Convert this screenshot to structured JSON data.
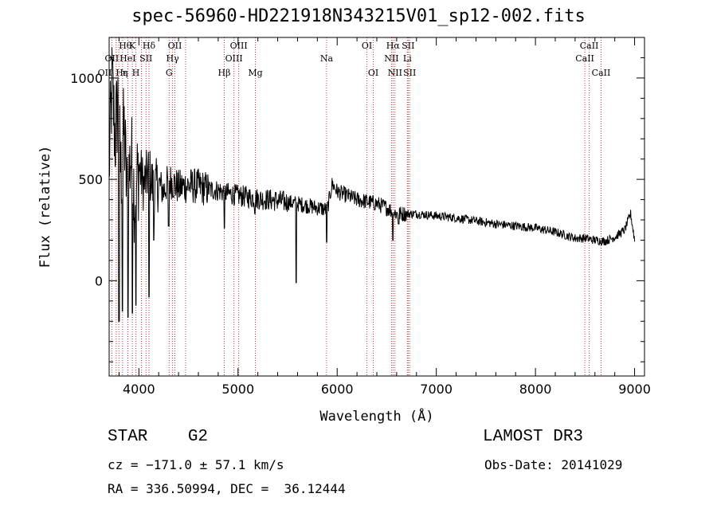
{
  "title": "spec-56960-HD221918N343215V01_sp12-002.fits",
  "info": {
    "star_class": "STAR    G2",
    "survey": "LAMOST DR3",
    "cz": "cz = −171.0 ± 57.1 km/s",
    "obs_date": "Obs-Date: 20141029",
    "radec": "RA = 336.50994, DEC =  36.12444"
  },
  "chart_data": {
    "type": "line",
    "title": "spec-56960-HD221918N343215V01_sp12-002.fits",
    "xlabel": "Wavelength (Å)",
    "ylabel": "Flux (relative)",
    "xlim": [
      3700,
      9100
    ],
    "ylim": [
      -470,
      1200
    ],
    "x_ticks": [
      4000,
      5000,
      6000,
      7000,
      8000,
      9000
    ],
    "y_ticks": [
      0,
      500,
      1000
    ],
    "line_color": "#000000",
    "marker_color": "#c83232",
    "spectrum_anchors": [
      [
        3700,
        560
      ],
      [
        3730,
        980
      ],
      [
        3760,
        700
      ],
      [
        3790,
        900
      ],
      [
        3820,
        520
      ],
      [
        3850,
        750
      ],
      [
        3880,
        430
      ],
      [
        3920,
        620
      ],
      [
        3960,
        400
      ],
      [
        4000,
        560
      ],
      [
        4050,
        470
      ],
      [
        4100,
        540
      ],
      [
        4150,
        450
      ],
      [
        4200,
        480
      ],
      [
        4250,
        440
      ],
      [
        4300,
        500
      ],
      [
        4400,
        460
      ],
      [
        4500,
        470
      ],
      [
        4600,
        465
      ],
      [
        4700,
        450
      ],
      [
        4800,
        445
      ],
      [
        4900,
        430
      ],
      [
        5000,
        420
      ],
      [
        5200,
        405
      ],
      [
        5400,
        395
      ],
      [
        5600,
        380
      ],
      [
        5800,
        360
      ],
      [
        5900,
        350
      ],
      [
        5950,
        480
      ],
      [
        6000,
        440
      ],
      [
        6100,
        420
      ],
      [
        6200,
        400
      ],
      [
        6300,
        390
      ],
      [
        6400,
        380
      ],
      [
        6500,
        360
      ],
      [
        6600,
        330
      ],
      [
        6700,
        330
      ],
      [
        6800,
        330
      ],
      [
        7000,
        320
      ],
      [
        7200,
        310
      ],
      [
        7400,
        295
      ],
      [
        7600,
        280
      ],
      [
        7800,
        270
      ],
      [
        8000,
        260
      ],
      [
        8200,
        240
      ],
      [
        8400,
        210
      ],
      [
        8500,
        210
      ],
      [
        8600,
        200
      ],
      [
        8700,
        195
      ],
      [
        8800,
        215
      ],
      [
        8900,
        250
      ],
      [
        8960,
        330
      ],
      [
        9000,
        200
      ]
    ],
    "spectrum_dips": [
      [
        3800,
        -200
      ],
      [
        3835,
        -150
      ],
      [
        3890,
        -180
      ],
      [
        3934,
        -160
      ],
      [
        3969,
        -120
      ],
      [
        4102,
        -80
      ],
      [
        4150,
        200
      ],
      [
        4300,
        270
      ],
      [
        4861,
        260
      ],
      [
        5170,
        330
      ],
      [
        5585,
        -10
      ],
      [
        5893,
        190
      ],
      [
        6563,
        200
      ],
      [
        6620,
        280
      ]
    ],
    "lines": [
      {
        "label": "Hθ",
        "wl": 3798,
        "row": 0,
        "align": "start"
      },
      {
        "label": "K",
        "wl": 3934,
        "row": 0,
        "align": "middle"
      },
      {
        "label": "Hδ",
        "wl": 4102,
        "row": 0,
        "align": "middle"
      },
      {
        "label": "OII",
        "wl": 4363,
        "row": 0,
        "align": "middle"
      },
      {
        "label": "OIII",
        "wl": 5007,
        "row": 0,
        "align": "middle"
      },
      {
        "label": "OI",
        "wl": 6300,
        "row": 0,
        "align": "middle"
      },
      {
        "label": "Hα",
        "wl": 6563,
        "row": 0,
        "align": "middle"
      },
      {
        "label": "SII",
        "wl": 6716,
        "row": 0,
        "align": "middle"
      },
      {
        "label": "CaII",
        "wl": 8542,
        "row": 0,
        "align": "middle"
      },
      {
        "label": "OII",
        "wl": 3727,
        "row": 1,
        "align": "middle"
      },
      {
        "label": "HeI",
        "wl": 3888,
        "row": 1,
        "align": "middle"
      },
      {
        "label": "SII",
        "wl": 4072,
        "row": 1,
        "align": "middle"
      },
      {
        "label": "Hγ",
        "wl": 4340,
        "row": 1,
        "align": "middle"
      },
      {
        "label": "OIII",
        "wl": 4959,
        "row": 1,
        "align": "middle"
      },
      {
        "label": "Na",
        "wl": 5893,
        "row": 1,
        "align": "middle"
      },
      {
        "label": "NII",
        "wl": 6548,
        "row": 1,
        "align": "middle"
      },
      {
        "label": "Li",
        "wl": 6708,
        "row": 1,
        "align": "middle"
      },
      {
        "label": "CaII",
        "wl": 8498,
        "row": 1,
        "align": "middle"
      },
      {
        "label": "OII",
        "wl": 3727,
        "row": 2,
        "align": "end"
      },
      {
        "label": "Hε",
        "wl": 3889,
        "row": 2,
        "align": "end"
      },
      {
        "label": "η",
        "wl": 3835,
        "row": 2,
        "align": "start"
      },
      {
        "label": "H",
        "wl": 3970,
        "row": 2,
        "align": "middle"
      },
      {
        "label": "G",
        "wl": 4305,
        "row": 2,
        "align": "middle"
      },
      {
        "label": "Hβ",
        "wl": 4861,
        "row": 2,
        "align": "middle"
      },
      {
        "label": "Mg",
        "wl": 5175,
        "row": 2,
        "align": "middle"
      },
      {
        "label": "OI",
        "wl": 6364,
        "row": 2,
        "align": "middle"
      },
      {
        "label": "NII",
        "wl": 6583,
        "row": 2,
        "align": "middle"
      },
      {
        "label": "SII",
        "wl": 6731,
        "row": 2,
        "align": "middle"
      },
      {
        "label": "CaII",
        "wl": 8662,
        "row": 2,
        "align": "middle"
      }
    ],
    "extra_markers": [
      3771,
      4026,
      4471
    ]
  }
}
